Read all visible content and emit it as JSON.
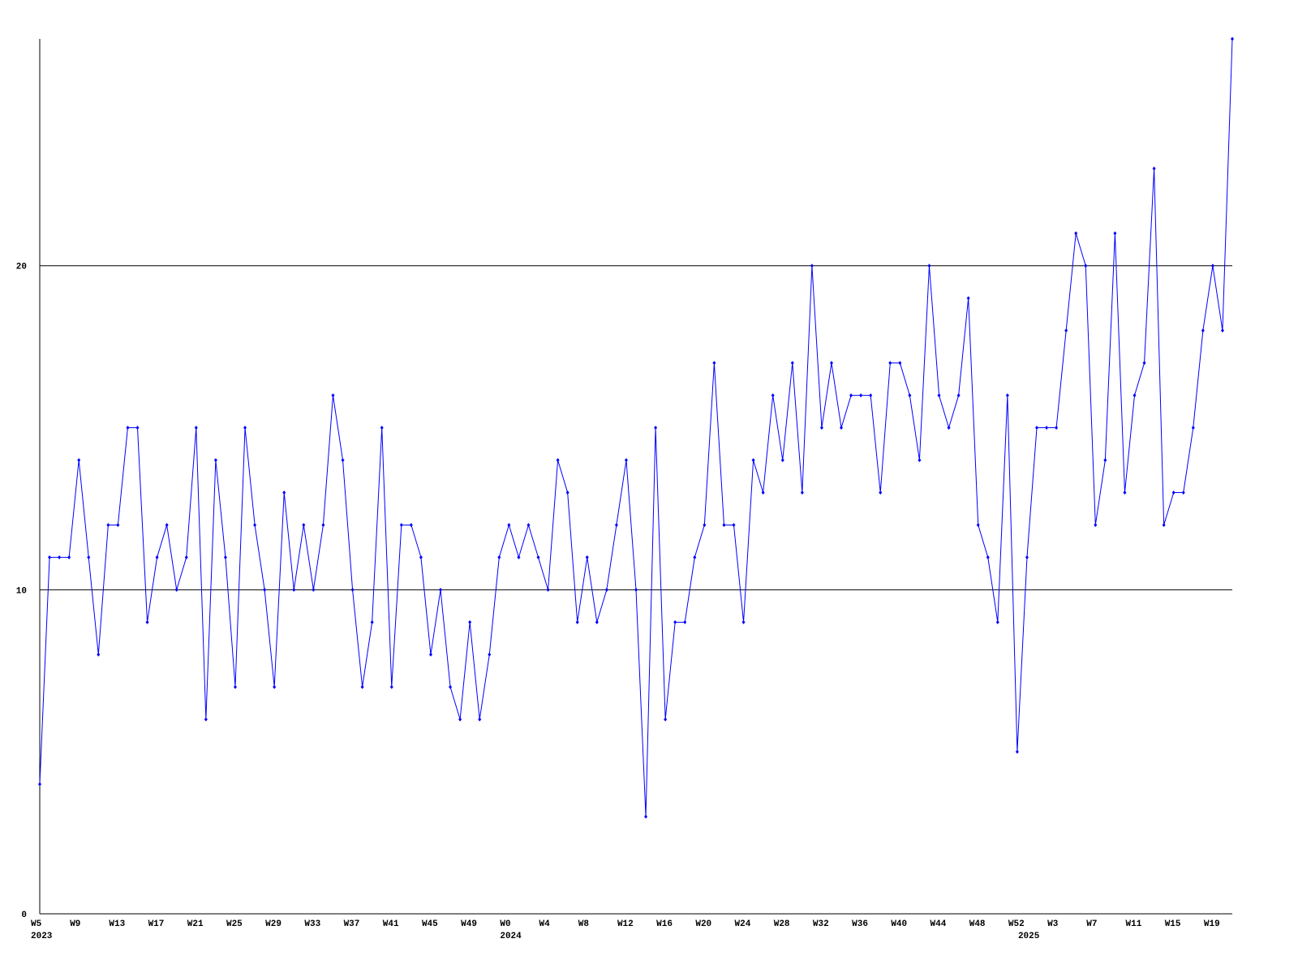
{
  "chart_data": {
    "type": "line",
    "color": "#0000ff",
    "ylim": [
      0,
      27
    ],
    "yticks": [
      0,
      10,
      20
    ],
    "grid": true,
    "categories": [
      "W5",
      null,
      null,
      null,
      "W9",
      null,
      null,
      null,
      "W13",
      null,
      null,
      null,
      "W17",
      null,
      null,
      null,
      "W21",
      null,
      null,
      null,
      "W25",
      null,
      null,
      null,
      "W29",
      null,
      null,
      null,
      "W33",
      null,
      null,
      null,
      "W37",
      null,
      null,
      null,
      "W41",
      null,
      null,
      null,
      "W45",
      null,
      null,
      null,
      "W49",
      null,
      null,
      null,
      "W0",
      null,
      null,
      null,
      "W4",
      null,
      null,
      null,
      "W8",
      null,
      null,
      null,
      "W12",
      null,
      null,
      null,
      "W16",
      null,
      null,
      null,
      "W20",
      null,
      null,
      null,
      "W24",
      null,
      null,
      null,
      "W28",
      null,
      null,
      null,
      "W32",
      null,
      null,
      null,
      "W36",
      null,
      null,
      null,
      "W40",
      null,
      null,
      null,
      "W44",
      null,
      null,
      null,
      "W48",
      null,
      null,
      null,
      "W52",
      null,
      null,
      null,
      "W3",
      null,
      null,
      null,
      "W7",
      null,
      null,
      null,
      "W11",
      null,
      null,
      null,
      "W15",
      null,
      null,
      null,
      "W19",
      null,
      null
    ],
    "years": [
      "2023",
      null,
      null,
      null,
      null,
      null,
      null,
      null,
      null,
      null,
      null,
      null,
      null,
      null,
      null,
      null,
      null,
      null,
      null,
      null,
      null,
      null,
      null,
      null,
      null,
      null,
      null,
      null,
      null,
      null,
      null,
      null,
      null,
      null,
      null,
      null,
      null,
      null,
      null,
      null,
      null,
      null,
      null,
      null,
      null,
      null,
      null,
      null,
      "2024",
      null,
      null,
      null,
      null,
      null,
      null,
      null,
      null,
      null,
      null,
      null,
      null,
      null,
      null,
      null,
      null,
      null,
      null,
      null,
      null,
      null,
      null,
      null,
      null,
      null,
      null,
      null,
      null,
      null,
      null,
      null,
      null,
      null,
      null,
      null,
      null,
      null,
      null,
      null,
      null,
      null,
      null,
      null,
      null,
      null,
      null,
      null,
      null,
      null,
      null,
      null,
      null,
      "2025",
      null,
      null,
      null,
      null,
      null,
      null,
      null,
      null,
      null,
      null,
      null,
      null,
      null,
      null,
      null,
      null,
      null,
      null,
      null,
      null,
      null
    ],
    "values": [
      4,
      11,
      11,
      11,
      14,
      11,
      8,
      12,
      12,
      15,
      15,
      9,
      11,
      12,
      10,
      11,
      15,
      6,
      14,
      11,
      7,
      15,
      12,
      10,
      7,
      13,
      10,
      12,
      10,
      12,
      16,
      14,
      10,
      7,
      9,
      15,
      7,
      12,
      12,
      11,
      8,
      10,
      7,
      6,
      9,
      6,
      8,
      11,
      12,
      11,
      12,
      11,
      10,
      14,
      13,
      9,
      11,
      9,
      10,
      12,
      14,
      10,
      3,
      15,
      6,
      9,
      9,
      11,
      12,
      17,
      12,
      12,
      9,
      14,
      13,
      16,
      14,
      17,
      13,
      20,
      15,
      17,
      15,
      16,
      16,
      16,
      13,
      17,
      17,
      16,
      14,
      20,
      16,
      15,
      16,
      19,
      12,
      11,
      9,
      16,
      5,
      11,
      15,
      15,
      15,
      18,
      21,
      20,
      12,
      14,
      21,
      13,
      16,
      17,
      23,
      12,
      13,
      13,
      15,
      18,
      20,
      18,
      27
    ]
  }
}
